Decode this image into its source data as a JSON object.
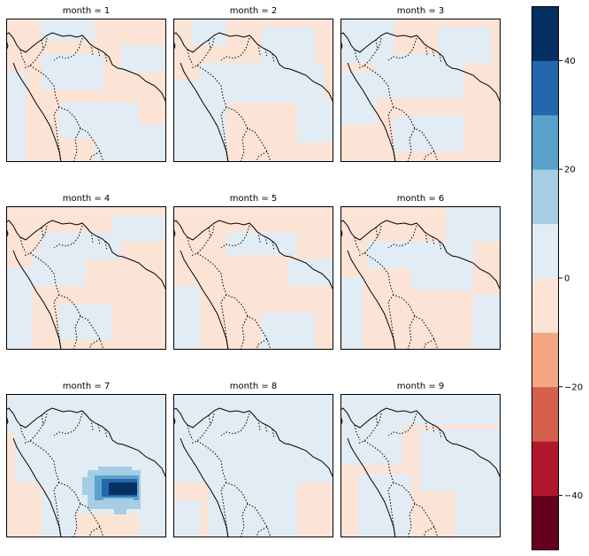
{
  "chart_data": {
    "type": "heatmap",
    "layout": {
      "rows": 3,
      "cols": 3
    },
    "facet_variable": "month",
    "panels": [
      {
        "title": "month = 1",
        "month": 1
      },
      {
        "title": "month = 2",
        "month": 2
      },
      {
        "title": "month = 3",
        "month": 3
      },
      {
        "title": "month = 4",
        "month": 4
      },
      {
        "title": "month = 5",
        "month": 5
      },
      {
        "title": "month = 6",
        "month": 6
      },
      {
        "title": "month = 7",
        "month": 7,
        "feature": "strong positive anomaly cluster, peak above 40"
      },
      {
        "title": "month = 8",
        "month": 8
      },
      {
        "title": "month = 9",
        "month": 9
      }
    ],
    "colorbar": {
      "vmin": -50,
      "vmax": 50,
      "step": 10,
      "ticks": [
        -40,
        -20,
        0,
        20,
        40
      ],
      "tick_labels": [
        "−40",
        "−20",
        "0",
        "20",
        "40"
      ],
      "colormap": "RdBu",
      "colors": [
        "#67001f",
        "#b2182b",
        "#d6604d",
        "#f4a582",
        "#fbe3d6",
        "#e1ecf4",
        "#a6cde3",
        "#5ba1cc",
        "#2467ad",
        "#053061"
      ]
    },
    "map_region": "northern South America",
    "grid": false
  }
}
